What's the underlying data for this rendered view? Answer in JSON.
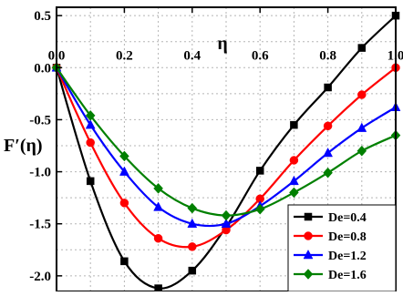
{
  "chart_data": {
    "type": "line",
    "title": "",
    "xlabel": "η",
    "ylabel": "F′(η)",
    "xlim": [
      0,
      1
    ],
    "ylim": [
      -2.15,
      0.58
    ],
    "x_ticks": [
      "0.0",
      "0.2",
      "0.4",
      "0.6",
      "0.8",
      "1.0"
    ],
    "y_ticks": [
      "0.5",
      "0.0",
      "-0.5",
      "-1.0",
      "-1.5",
      "-2.0"
    ],
    "grid": true,
    "legend_position": "bottom-right",
    "colors": {
      "De=0.4": "#000000",
      "De=0.8": "#ff0000",
      "De=1.2": "#0000ff",
      "De=1.6": "#008000"
    },
    "markers": {
      "De=0.4": "square",
      "De=0.8": "circle",
      "De=1.2": "triangle",
      "De=1.6": "diamond"
    },
    "x": [
      0.0,
      0.1,
      0.2,
      0.3,
      0.4,
      0.5,
      0.6,
      0.7,
      0.8,
      0.9,
      1.0
    ],
    "series": [
      {
        "name": "De=0.4",
        "values": [
          0.0,
          -1.09,
          -1.86,
          -2.12,
          -1.95,
          -1.53,
          -0.99,
          -0.55,
          -0.19,
          0.19,
          0.5
        ]
      },
      {
        "name": "De=0.8",
        "values": [
          0.0,
          -0.72,
          -1.3,
          -1.64,
          -1.72,
          -1.56,
          -1.26,
          -0.89,
          -0.56,
          -0.26,
          0.0
        ]
      },
      {
        "name": "De=1.2",
        "values": [
          0.0,
          -0.55,
          -1.0,
          -1.34,
          -1.5,
          -1.5,
          -1.33,
          -1.09,
          -0.82,
          -0.58,
          -0.38
        ]
      },
      {
        "name": "De=1.6",
        "values": [
          0.0,
          -0.46,
          -0.85,
          -1.16,
          -1.35,
          -1.42,
          -1.36,
          -1.2,
          -1.01,
          -0.8,
          -0.65
        ]
      }
    ]
  }
}
